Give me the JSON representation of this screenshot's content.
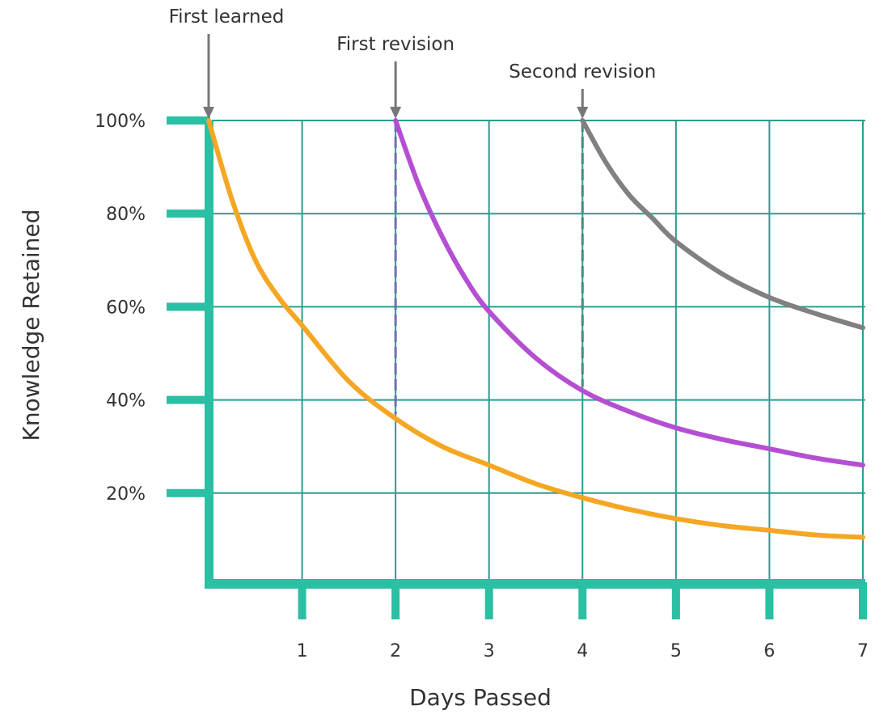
{
  "chart_data": {
    "type": "line",
    "xlabel": "Days Passed",
    "ylabel": "Knowledge Retained",
    "x_ticks": [
      "1",
      "2",
      "3",
      "4",
      "5",
      "6",
      "7"
    ],
    "y_ticks": [
      "100%",
      "80%",
      "60%",
      "40%",
      "20%"
    ],
    "xlim": [
      0,
      7
    ],
    "ylim": [
      0,
      100
    ],
    "grid": true,
    "colors": {
      "axis": "#2bbfa4",
      "grid": "#2a9d8f",
      "annotation": "#777777",
      "first_learned_curve": "#f5a623",
      "first_revision_curve": "#b44fd3",
      "second_revision_curve": "#808080"
    },
    "annotations": [
      {
        "label": "First learned",
        "x": 0
      },
      {
        "label": "First revision",
        "x": 2
      },
      {
        "label": "Second revision",
        "x": 4
      }
    ],
    "series": [
      {
        "color_key": "first_learned_curve",
        "x": [
          0,
          0.25,
          0.5,
          0.75,
          1,
          1.5,
          2,
          2.5,
          3,
          3.5,
          4,
          4.5,
          5,
          5.5,
          6,
          6.5,
          7
        ],
        "y": [
          100,
          83,
          70,
          62,
          56,
          44,
          36,
          30,
          26,
          22,
          19,
          16.5,
          14.5,
          13,
          12,
          11,
          10.5
        ]
      },
      {
        "color_key": "first_revision_curve",
        "x": [
          2,
          2.25,
          2.5,
          2.75,
          3,
          3.5,
          4,
          4.5,
          5,
          5.5,
          6,
          6.5,
          7
        ],
        "y": [
          100,
          86,
          75,
          66,
          59,
          49,
          42,
          37.5,
          34,
          31.5,
          29.5,
          27.5,
          26
        ]
      },
      {
        "color_key": "second_revision_curve",
        "x": [
          4,
          4.25,
          4.5,
          4.75,
          5,
          5.5,
          6,
          6.5,
          7
        ],
        "y": [
          100,
          91,
          84,
          79,
          74,
          67,
          62,
          58.5,
          55.5
        ]
      }
    ]
  }
}
